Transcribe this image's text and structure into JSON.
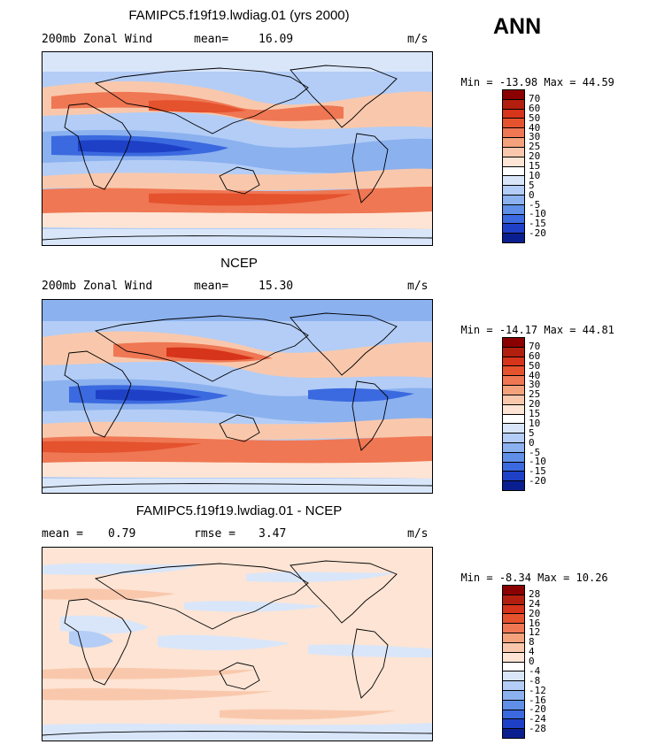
{
  "season": "ANN",
  "panels": [
    {
      "title": "FAMIPC5.f19f19.lwdiag.01 (yrs 2000)",
      "left_label": "200mb Zonal Wind",
      "stat_label": "mean=",
      "stat_value": "16.09",
      "stat2_label": "",
      "stat2_value": "",
      "units": "m/s",
      "min_label": "Min =",
      "min_value": "-13.98",
      "max_label": "Max =",
      "max_value": "44.59",
      "levels": [
        "70",
        "60",
        "50",
        "40",
        "30",
        "25",
        "20",
        "15",
        "10",
        "5",
        "0",
        "-5",
        "-10",
        "-15",
        "-20"
      ],
      "colors": [
        "#8b0000",
        "#b21f0e",
        "#d6341b",
        "#e5522e",
        "#ef7753",
        "#f4a27c",
        "#f9c8ac",
        "#fde4d4",
        "#ffffff",
        "#d9e6fa",
        "#b3cdf6",
        "#8bb1ef",
        "#5f8fe6",
        "#3b69df",
        "#1e40c7",
        "#0a1f8f"
      ]
    },
    {
      "title": "NCEP",
      "left_label": "200mb Zonal Wind",
      "stat_label": "mean=",
      "stat_value": "15.30",
      "stat2_label": "",
      "stat2_value": "",
      "units": "m/s",
      "min_label": "Min =",
      "min_value": "-14.17",
      "max_label": "Max =",
      "max_value": "44.81",
      "levels": [
        "70",
        "60",
        "50",
        "40",
        "30",
        "25",
        "20",
        "15",
        "10",
        "5",
        "0",
        "-5",
        "-10",
        "-15",
        "-20"
      ],
      "colors": [
        "#8b0000",
        "#b21f0e",
        "#d6341b",
        "#e5522e",
        "#ef7753",
        "#f4a27c",
        "#f9c8ac",
        "#fde4d4",
        "#ffffff",
        "#d9e6fa",
        "#b3cdf6",
        "#8bb1ef",
        "#5f8fe6",
        "#3b69df",
        "#1e40c7",
        "#0a1f8f"
      ]
    },
    {
      "title": "FAMIPC5.f19f19.lwdiag.01 - NCEP",
      "left_label": "",
      "stat_label": "mean =",
      "stat_value": "0.79",
      "stat2_label": "rmse =",
      "stat2_value": "3.47",
      "units": "m/s",
      "min_label": "Min =",
      "min_value": "-8.34",
      "max_label": "Max =",
      "max_value": "10.26",
      "levels": [
        "28",
        "24",
        "20",
        "16",
        "12",
        "8",
        "4",
        "0",
        "-4",
        "-8",
        "-12",
        "-16",
        "-20",
        "-24",
        "-28"
      ],
      "colors": [
        "#8b0000",
        "#b21f0e",
        "#d6341b",
        "#e5522e",
        "#ef7753",
        "#f4a27c",
        "#f9c8ac",
        "#fde4d4",
        "#ffffff",
        "#d9e6fa",
        "#b3cdf6",
        "#8bb1ef",
        "#5f8fe6",
        "#3b69df",
        "#1e40c7",
        "#0a1f8f"
      ]
    }
  ]
}
